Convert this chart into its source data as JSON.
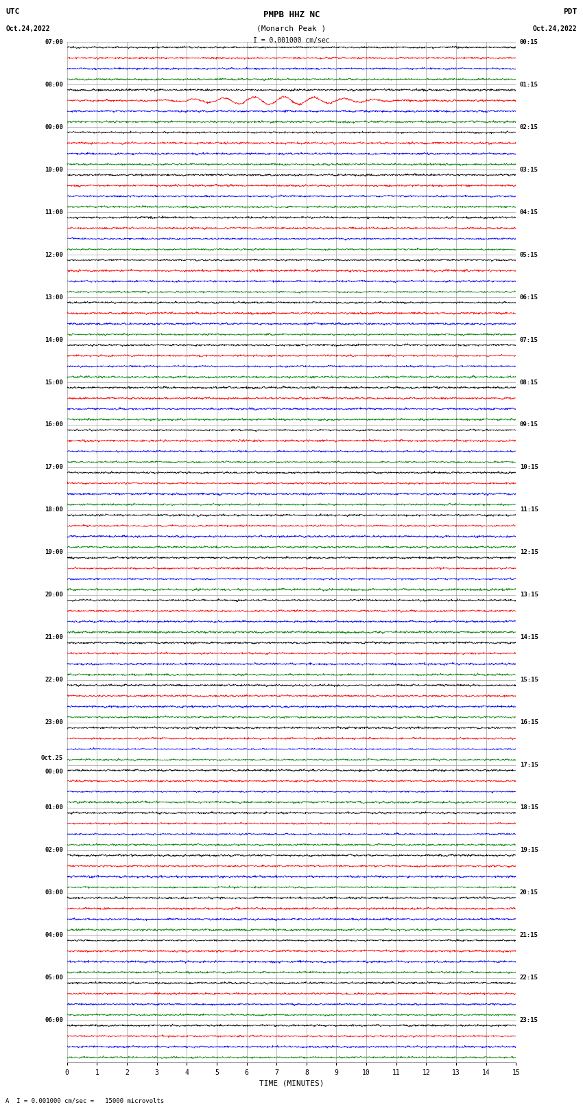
{
  "title_line1": "PMPB HHZ NC",
  "title_line2": "(Monarch Peak )",
  "scale_label": "I = 0.001000 cm/sec",
  "bottom_label": "A  I = 0.001000 cm/sec =   15000 microvolts",
  "xlabel": "TIME (MINUTES)",
  "utc_header1": "UTC",
  "utc_header2": "Oct.24,2022",
  "pdt_header1": "PDT",
  "pdt_header2": "Oct.24,2022",
  "num_hour_groups": 24,
  "traces_per_group": 4,
  "minutes_per_row": 15,
  "colors": [
    "black",
    "red",
    "blue",
    "green"
  ],
  "bg_color": "white",
  "grid_color": "#888888",
  "trace_amp": 0.3,
  "figsize": [
    8.5,
    16.13
  ],
  "dpi": 100,
  "left_labels": [
    "07:00",
    "08:00",
    "09:00",
    "10:00",
    "11:00",
    "12:00",
    "13:00",
    "14:00",
    "15:00",
    "16:00",
    "17:00",
    "18:00",
    "19:00",
    "20:00",
    "21:00",
    "22:00",
    "23:00",
    "Oct.25\n00:00",
    "01:00",
    "02:00",
    "03:00",
    "04:00",
    "05:00",
    "06:00"
  ],
  "right_labels": [
    "00:15",
    "01:15",
    "02:15",
    "03:15",
    "04:15",
    "05:15",
    "06:15",
    "07:15",
    "08:15",
    "09:15",
    "10:15",
    "11:15",
    "12:15",
    "13:15",
    "14:15",
    "15:15",
    "16:15",
    "17:15",
    "18:15",
    "19:15",
    "20:15",
    "21:15",
    "22:15",
    "23:15"
  ],
  "special_group": 1,
  "special_trace": 1,
  "special_amp_mult": 4.0
}
